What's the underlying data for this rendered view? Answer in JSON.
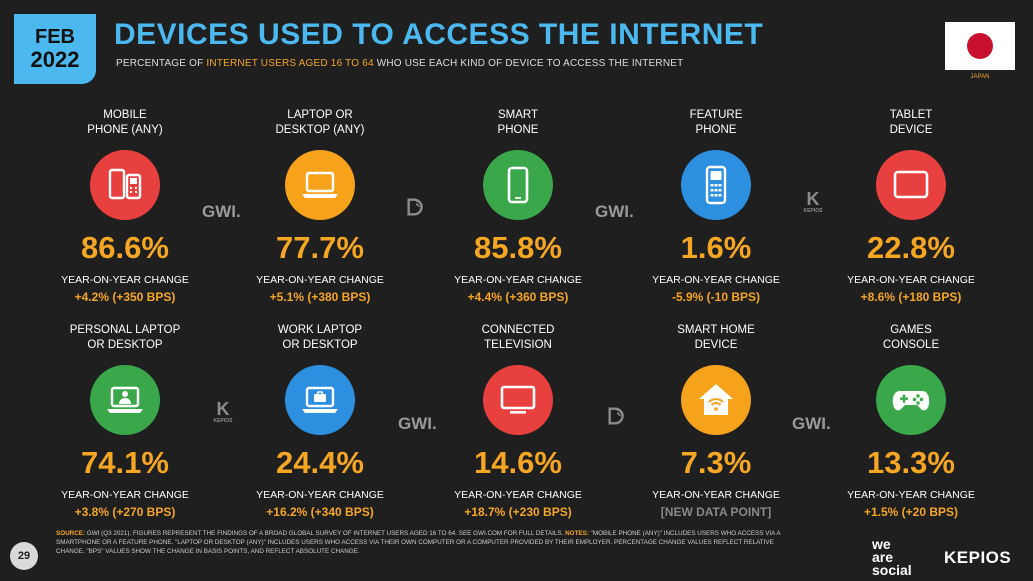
{
  "header": {
    "month": "FEB",
    "year": "2022",
    "title": "DEVICES USED TO ACCESS THE INTERNET",
    "subtitle_pre": "PERCENTAGE OF ",
    "subtitle_highlight": "INTERNET USERS AGED 16 TO 64",
    "subtitle_post": " WHO USE EACH KIND OF DEVICE TO ACCESS THE INTERNET",
    "country": "JAPAN"
  },
  "colors": {
    "accent_blue": "#4bb8f0",
    "accent_orange": "#f5a623",
    "red": "#e8403f",
    "orange": "#f7a21b",
    "green": "#3aa84a",
    "blue": "#2d8fe0"
  },
  "cards": [
    {
      "label1": "MOBILE",
      "label2": "PHONE (ANY)",
      "icon": "mobile-phones-icon",
      "color": "#e8403f",
      "value": "86.6%",
      "yoy": "YEAR-ON-YEAR CHANGE",
      "change": "+4.2% (+350 BPS)"
    },
    {
      "label1": "LAPTOP OR",
      "label2": "DESKTOP (ANY)",
      "icon": "laptop-icon",
      "color": "#f7a21b",
      "value": "77.7%",
      "yoy": "YEAR-ON-YEAR CHANGE",
      "change": "+5.1% (+380 BPS)"
    },
    {
      "label1": "SMART",
      "label2": "PHONE",
      "icon": "smartphone-icon",
      "color": "#3aa84a",
      "value": "85.8%",
      "yoy": "YEAR-ON-YEAR CHANGE",
      "change": "+4.4% (+360 BPS)"
    },
    {
      "label1": "FEATURE",
      "label2": "PHONE",
      "icon": "feature-phone-icon",
      "color": "#2d8fe0",
      "value": "1.6%",
      "yoy": "YEAR-ON-YEAR CHANGE",
      "change": "-5.9% (-10 BPS)"
    },
    {
      "label1": "TABLET",
      "label2": "DEVICE",
      "icon": "tablet-icon",
      "color": "#e8403f",
      "value": "22.8%",
      "yoy": "YEAR-ON-YEAR CHANGE",
      "change": "+8.6% (+180 BPS)"
    },
    {
      "label1": "PERSONAL LAPTOP",
      "label2": "OR DESKTOP",
      "icon": "personal-laptop-icon",
      "color": "#3aa84a",
      "value": "74.1%",
      "yoy": "YEAR-ON-YEAR CHANGE",
      "change": "+3.8% (+270 BPS)"
    },
    {
      "label1": "WORK LAPTOP",
      "label2": "OR DESKTOP",
      "icon": "work-laptop-icon",
      "color": "#2d8fe0",
      "value": "24.4%",
      "yoy": "YEAR-ON-YEAR CHANGE",
      "change": "+16.2% (+340 BPS)"
    },
    {
      "label1": "CONNECTED",
      "label2": "TELEVISION",
      "icon": "television-icon",
      "color": "#e8403f",
      "value": "14.6%",
      "yoy": "YEAR-ON-YEAR CHANGE",
      "change": "+18.7% (+230 BPS)"
    },
    {
      "label1": "SMART HOME",
      "label2": "DEVICE",
      "icon": "smart-home-icon",
      "color": "#f7a21b",
      "value": "7.3%",
      "yoy": "YEAR-ON-YEAR CHANGE",
      "change": "[NEW DATA POINT]"
    },
    {
      "label1": "GAMES",
      "label2": "CONSOLE",
      "icon": "game-controller-icon",
      "color": "#3aa84a",
      "value": "13.3%",
      "yoy": "YEAR-ON-YEAR CHANGE",
      "change": "+1.5% (+20 BPS)"
    }
  ],
  "watermarks": {
    "gwi": "GWI.",
    "kepios_short": "K",
    "kepios_text": "KEPIOS"
  },
  "footer": {
    "source_label": "SOURCE:",
    "source_text": " GWI (Q3 2021). FIGURES REPRESENT THE FINDINGS OF A BROAD GLOBAL SURVEY OF INTERNET USERS AGED 16 TO 64. SEE GWI.COM FOR FULL DETAILS. ",
    "notes_label": "NOTES:",
    "notes_text": " \"MOBILE PHONE (ANY)\" INCLUDES USERS WHO ACCESS VIA A SMARTPHONE OR A FEATURE PHONE. \"LAPTOP OR DESKTOP (ANY)\" INCLUDES USERS WHO ACCESS VIA THEIR OWN COMPUTER OR A COMPUTER PROVIDED BY THEIR EMPLOYER. PERCENTAGE CHANGE VALUES REFLECT RELATIVE CHANGE. \"BPS\" VALUES SHOW THE CHANGE IN BASIS POINTS, AND REFLECT ABSOLUTE CHANGE.",
    "page_number": "29",
    "we": "we",
    "are": "are",
    "social": "social",
    "kepios": "KEPIOS"
  }
}
